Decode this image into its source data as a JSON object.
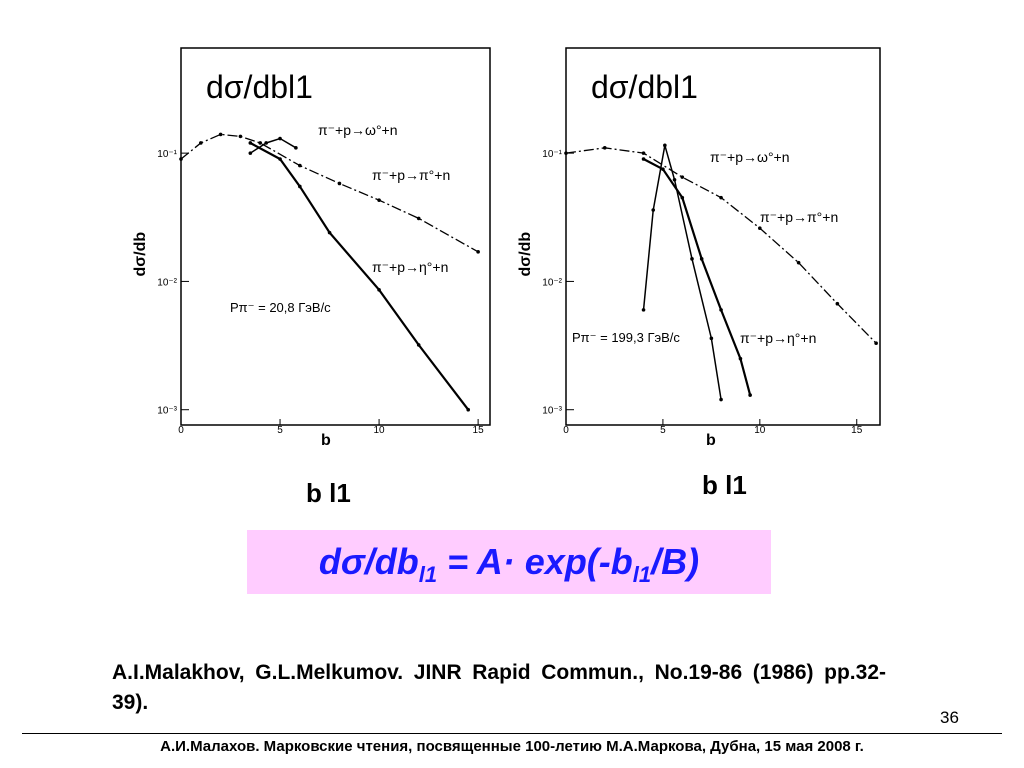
{
  "chart_data": [
    {
      "type": "line",
      "title": "dσ/dbl1",
      "xlabel": "b",
      "ylabel": "dσ/db",
      "log_y": true,
      "xlim": [
        0,
        15.6
      ],
      "ylim": [
        0.00076,
        0.66
      ],
      "xticks": [
        0,
        5,
        10,
        15
      ],
      "yticks": [
        {
          "value": 0.001,
          "label": "10⁻³"
        },
        {
          "value": 0.01,
          "label": "10⁻²"
        },
        {
          "value": 0.1,
          "label": "10⁻¹"
        }
      ],
      "annotation": "Pπ⁻ = 20,8 ГэВ/с",
      "series": [
        {
          "name": "π⁻+p→ω°+n",
          "color": "#000000",
          "x": [
            3.5,
            4.3,
            5,
            5.8
          ],
          "values": [
            0.1,
            0.12,
            0.13,
            0.11
          ]
        },
        {
          "name": "π⁻+p→π°+n",
          "color": "#000000",
          "x": [
            0,
            1,
            2,
            3,
            4,
            6,
            8,
            10,
            12,
            15
          ],
          "values": [
            0.09,
            0.12,
            0.14,
            0.135,
            0.12,
            0.08,
            0.058,
            0.043,
            0.031,
            0.017
          ]
        },
        {
          "name": "π⁻+p→η°+n",
          "color": "#000000",
          "x": [
            3.5,
            5,
            6,
            7.5,
            10,
            12,
            14.5
          ],
          "values": [
            0.12,
            0.09,
            0.055,
            0.024,
            0.0086,
            0.0032,
            0.001
          ]
        }
      ]
    },
    {
      "type": "line",
      "title": "dσ/dbl1",
      "xlabel": "b",
      "ylabel": "dσ/db",
      "log_y": true,
      "xlim": [
        0,
        16.2
      ],
      "ylim": [
        0.00076,
        0.66
      ],
      "xticks": [
        0,
        5,
        10,
        15
      ],
      "yticks": [
        {
          "value": 0.001,
          "label": "10⁻³"
        },
        {
          "value": 0.01,
          "label": "10⁻²"
        },
        {
          "value": 0.1,
          "label": "10⁻¹"
        }
      ],
      "annotation": "Pπ⁻ = 199,3 ГэВ/с",
      "series": [
        {
          "name": "π⁻+p→ω°+n",
          "color": "#000000",
          "x": [
            4,
            4.5,
            5.1,
            5.6,
            6.5,
            7.5,
            8
          ],
          "values": [
            0.006,
            0.036,
            0.115,
            0.062,
            0.015,
            0.0036,
            0.0012
          ]
        },
        {
          "name": "π⁻+p→π°+n",
          "color": "#000000",
          "x": [
            0,
            2,
            4,
            6,
            8,
            10,
            12,
            14,
            16
          ],
          "values": [
            0.1,
            0.11,
            0.1,
            0.065,
            0.045,
            0.026,
            0.014,
            0.0067,
            0.0033
          ]
        },
        {
          "name": "π⁻+p→η°+n",
          "color": "#000000",
          "x": [
            4,
            5,
            6,
            7,
            8,
            9,
            9.5
          ],
          "values": [
            0.09,
            0.075,
            0.045,
            0.015,
            0.006,
            0.0025,
            0.0013
          ]
        }
      ]
    }
  ],
  "slide": {
    "blabels": [
      "b l1",
      "b l1"
    ],
    "formula": {
      "a": "dσ/db",
      "sub1": "l1",
      "b": " = A· exp(-b",
      "sub2": "l1",
      "c": "/B)"
    },
    "reference": "A.I.Malakhov, G.L.Melkumov. JINR Rapid Commun., No.19-86 (1986) pp.32-39).",
    "page": "36",
    "footer": "А.И.Малахов. Марковские чтения, посвященные 100-летию М.А.Маркова, Дубна, 15 мая 2008 г."
  }
}
